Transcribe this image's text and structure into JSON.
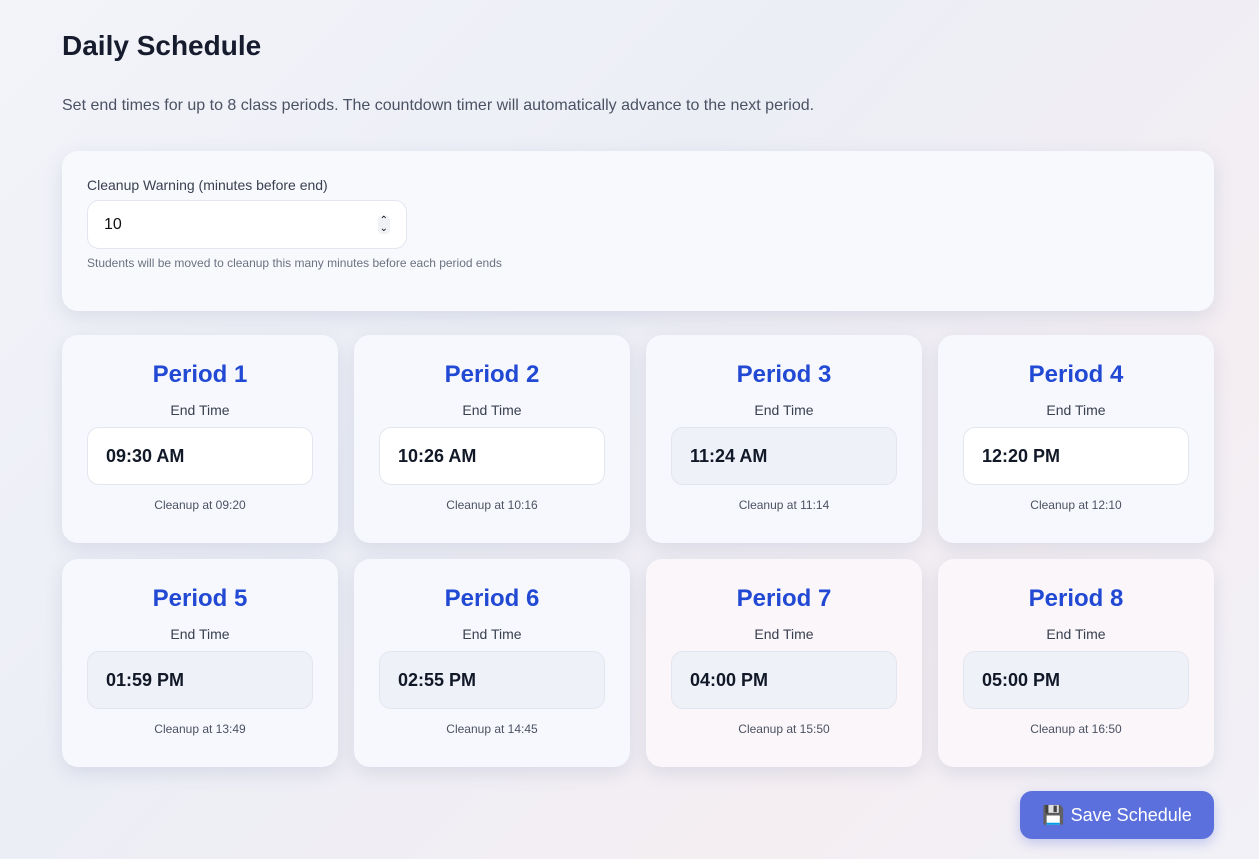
{
  "title": "Daily Schedule",
  "description": "Set end times for up to 8 class periods. The countdown timer will automatically advance to the next period.",
  "settings": {
    "label": "Cleanup Warning (minutes before end)",
    "value": "10",
    "hint": "Students will be moved to cleanup this many minutes before each period ends"
  },
  "end_time_label": "End Time",
  "periods": [
    {
      "name": "Period 1",
      "time": "09:30 AM",
      "cleanup": "Cleanup at 09:20"
    },
    {
      "name": "Period 2",
      "time": "10:26 AM",
      "cleanup": "Cleanup at 10:16"
    },
    {
      "name": "Period 3",
      "time": "11:24 AM",
      "cleanup": "Cleanup at 11:14"
    },
    {
      "name": "Period 4",
      "time": "12:20 PM",
      "cleanup": "Cleanup at 12:10"
    },
    {
      "name": "Period 5",
      "time": "01:59 PM",
      "cleanup": "Cleanup at 13:49"
    },
    {
      "name": "Period 6",
      "time": "02:55 PM",
      "cleanup": "Cleanup at 14:45"
    },
    {
      "name": "Period 7",
      "time": "04:00 PM",
      "cleanup": "Cleanup at 15:50"
    },
    {
      "name": "Period 8",
      "time": "05:00 PM",
      "cleanup": "Cleanup at 16:50"
    }
  ],
  "save": {
    "icon": "floppy-disk-icon",
    "label": "Save Schedule"
  },
  "colors": {
    "accent": "#2149d4",
    "button": "#5b70dc"
  }
}
